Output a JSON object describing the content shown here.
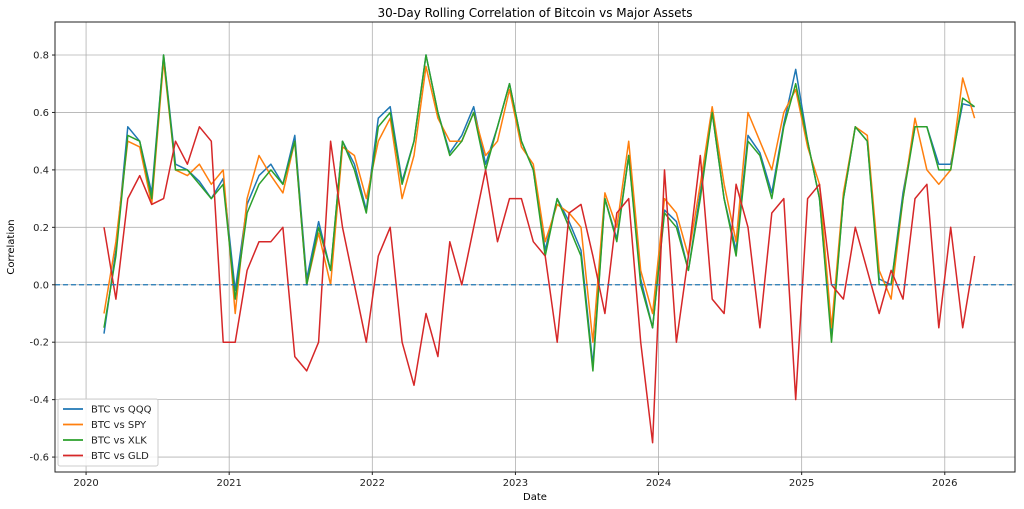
{
  "chart_data": {
    "type": "line",
    "title": "30-Day Rolling Correlation of Bitcoin vs Major Assets",
    "xlabel": "Date",
    "ylabel": "Correlation",
    "xlim": [
      "2019-10-13",
      "2026-06-28"
    ],
    "ylim": [
      -0.652,
      0.915
    ],
    "grid": true,
    "legend_position": "bottom-left",
    "x_ticks": [
      "2020",
      "2021",
      "2022",
      "2023",
      "2024",
      "2025",
      "2026"
    ],
    "y_ticks": [
      "-0.6",
      "-0.4",
      "-0.2",
      "0.0",
      "0.2",
      "0.4",
      "0.6",
      "0.8"
    ],
    "reference_line": {
      "y": 0.0,
      "style": "dashed",
      "color": "#1f77b4"
    },
    "dates": [
      "2020-02",
      "2020-03",
      "2020-04",
      "2020-05",
      "2020-06",
      "2020-07",
      "2020-08",
      "2020-09",
      "2020-10",
      "2020-11",
      "2020-12",
      "2021-01",
      "2021-02",
      "2021-03",
      "2021-04",
      "2021-05",
      "2021-06",
      "2021-07",
      "2021-08",
      "2021-09",
      "2021-10",
      "2021-11",
      "2021-12",
      "2022-01",
      "2022-02",
      "2022-03",
      "2022-04",
      "2022-05",
      "2022-06",
      "2022-07",
      "2022-08",
      "2022-09",
      "2022-10",
      "2022-11",
      "2022-12",
      "2023-01",
      "2023-02",
      "2023-03",
      "2023-04",
      "2023-05",
      "2023-06",
      "2023-07",
      "2023-08",
      "2023-09",
      "2023-10",
      "2023-11",
      "2023-12",
      "2024-01",
      "2024-02",
      "2024-03",
      "2024-04",
      "2024-05",
      "2024-06",
      "2024-07",
      "2024-08",
      "2024-09",
      "2024-10",
      "2024-11",
      "2024-12",
      "2025-01",
      "2025-02",
      "2025-03",
      "2025-04",
      "2025-05",
      "2025-06",
      "2025-07",
      "2025-08",
      "2025-09",
      "2025-10",
      "2025-11",
      "2025-12",
      "2026-01",
      "2026-02",
      "2026-03"
    ],
    "series": [
      {
        "name": "BTC vs QQQ",
        "color": "#1f77b4",
        "values": [
          -0.17,
          0.12,
          0.55,
          0.5,
          0.32,
          0.8,
          0.42,
          0.4,
          0.36,
          0.3,
          0.37,
          -0.02,
          0.28,
          0.38,
          0.42,
          0.35,
          0.52,
          0.02,
          0.22,
          0.05,
          0.5,
          0.42,
          0.26,
          0.58,
          0.62,
          0.36,
          0.5,
          0.8,
          0.6,
          0.46,
          0.52,
          0.62,
          0.42,
          0.55,
          0.7,
          0.5,
          0.4,
          0.12,
          0.3,
          0.22,
          0.12,
          -0.28,
          0.3,
          0.16,
          0.45,
          0.02,
          -0.15,
          0.26,
          0.22,
          0.05,
          0.32,
          0.6,
          0.3,
          0.12,
          0.52,
          0.46,
          0.32,
          0.56,
          0.75,
          0.5,
          0.3,
          -0.18,
          0.3,
          0.55,
          0.5,
          0.02,
          0.0,
          0.32,
          0.55,
          0.55,
          0.42,
          0.42,
          0.63,
          0.62
        ]
      },
      {
        "name": "BTC vs SPY",
        "color": "#ff7f0e",
        "values": [
          -0.1,
          0.15,
          0.5,
          0.48,
          0.28,
          0.78,
          0.4,
          0.38,
          0.42,
          0.35,
          0.4,
          -0.1,
          0.3,
          0.45,
          0.38,
          0.32,
          0.5,
          0.0,
          0.18,
          0.0,
          0.48,
          0.45,
          0.3,
          0.5,
          0.58,
          0.3,
          0.45,
          0.76,
          0.58,
          0.5,
          0.5,
          0.6,
          0.45,
          0.5,
          0.68,
          0.48,
          0.42,
          0.15,
          0.28,
          0.25,
          0.2,
          -0.2,
          0.32,
          0.2,
          0.5,
          0.05,
          -0.1,
          0.3,
          0.25,
          0.1,
          0.35,
          0.62,
          0.35,
          0.15,
          0.6,
          0.5,
          0.4,
          0.6,
          0.68,
          0.48,
          0.35,
          -0.15,
          0.32,
          0.55,
          0.52,
          0.05,
          -0.05,
          0.3,
          0.58,
          0.4,
          0.35,
          0.4,
          0.72,
          0.58
        ]
      },
      {
        "name": "BTC vs XLK",
        "color": "#2ca02c",
        "values": [
          -0.15,
          0.1,
          0.52,
          0.5,
          0.3,
          0.8,
          0.4,
          0.4,
          0.35,
          0.3,
          0.35,
          -0.05,
          0.25,
          0.35,
          0.4,
          0.35,
          0.5,
          0.0,
          0.2,
          0.05,
          0.5,
          0.4,
          0.25,
          0.55,
          0.6,
          0.35,
          0.5,
          0.8,
          0.6,
          0.45,
          0.5,
          0.6,
          0.4,
          0.55,
          0.7,
          0.5,
          0.4,
          0.1,
          0.3,
          0.2,
          0.1,
          -0.3,
          0.3,
          0.15,
          0.45,
          0.0,
          -0.15,
          0.25,
          0.2,
          0.05,
          0.3,
          0.6,
          0.3,
          0.1,
          0.5,
          0.45,
          0.3,
          0.55,
          0.7,
          0.5,
          0.3,
          -0.2,
          0.3,
          0.55,
          0.5,
          0.0,
          0.0,
          0.3,
          0.55,
          0.55,
          0.4,
          0.4,
          0.65,
          0.62
        ]
      },
      {
        "name": "BTC vs GLD",
        "color": "#d62728",
        "values": [
          0.2,
          -0.05,
          0.3,
          0.38,
          0.28,
          0.3,
          0.5,
          0.42,
          0.55,
          0.5,
          -0.2,
          -0.2,
          0.05,
          0.15,
          0.15,
          0.2,
          -0.25,
          -0.3,
          -0.2,
          0.5,
          0.2,
          0.0,
          -0.2,
          0.1,
          0.2,
          -0.2,
          -0.35,
          -0.1,
          -0.25,
          0.15,
          0.0,
          0.2,
          0.4,
          0.15,
          0.3,
          0.3,
          0.15,
          0.1,
          -0.2,
          0.25,
          0.28,
          0.1,
          -0.1,
          0.25,
          0.3,
          -0.2,
          -0.55,
          0.4,
          -0.2,
          0.1,
          0.45,
          -0.05,
          -0.1,
          0.35,
          0.2,
          -0.15,
          0.25,
          0.3,
          -0.4,
          0.3,
          0.35,
          0.0,
          -0.05,
          0.2,
          0.05,
          -0.1,
          0.05,
          -0.05,
          0.3,
          0.35,
          -0.15,
          0.2,
          -0.15,
          0.1
        ]
      }
    ]
  }
}
